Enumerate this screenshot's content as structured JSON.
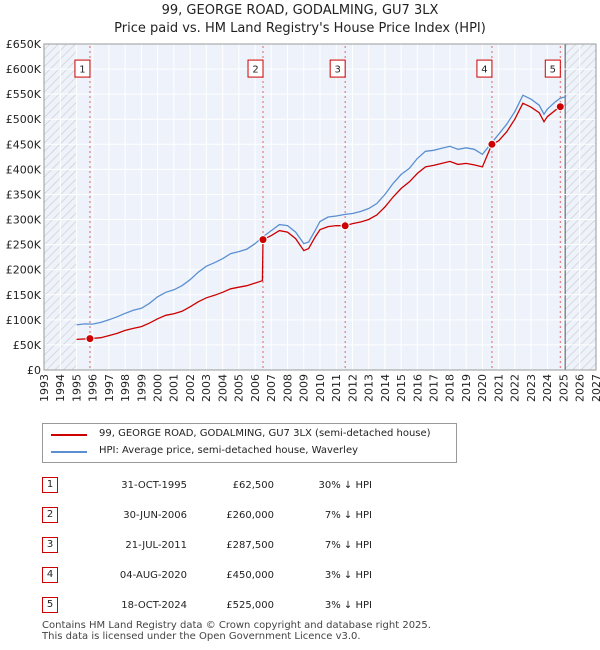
{
  "title_line1": "99, GEORGE ROAD, GODALMING, GU7 3LX",
  "title_line2": "Price paid vs. HM Land Registry's House Price Index (HPI)",
  "chart_data": {
    "type": "line",
    "xlim": [
      1993,
      2027
    ],
    "ylim": [
      0,
      650000
    ],
    "y_ticks": [
      0,
      50000,
      100000,
      150000,
      200000,
      250000,
      300000,
      350000,
      400000,
      450000,
      500000,
      550000,
      600000,
      650000
    ],
    "y_tick_labels": [
      "£0",
      "£50K",
      "£100K",
      "£150K",
      "£200K",
      "£250K",
      "£300K",
      "£350K",
      "£400K",
      "£450K",
      "£500K",
      "£550K",
      "£600K",
      "£650K"
    ],
    "x_ticks": [
      1993,
      1994,
      1995,
      1996,
      1997,
      1998,
      1999,
      2000,
      2001,
      2002,
      2003,
      2004,
      2005,
      2006,
      2007,
      2008,
      2009,
      2010,
      2011,
      2012,
      2013,
      2014,
      2015,
      2016,
      2017,
      2018,
      2019,
      2020,
      2021,
      2022,
      2023,
      2024,
      2025,
      2026,
      2027
    ],
    "data_start": 1995.0,
    "data_end": 2025.1,
    "hatch_before": 1995.0,
    "hatch_after": 2025.1,
    "hpi_points": [
      [
        1995.0,
        90000
      ],
      [
        1995.5,
        92000
      ],
      [
        1996,
        91500
      ],
      [
        1996.5,
        95000
      ],
      [
        1997,
        100000
      ],
      [
        1997.5,
        106000
      ],
      [
        1998,
        113000
      ],
      [
        1998.5,
        119000
      ],
      [
        1999,
        123000
      ],
      [
        1999.5,
        133000
      ],
      [
        2000,
        146000
      ],
      [
        2000.5,
        155000
      ],
      [
        2001,
        160000
      ],
      [
        2001.5,
        168000
      ],
      [
        2002,
        180000
      ],
      [
        2002.5,
        195000
      ],
      [
        2003,
        207000
      ],
      [
        2003.5,
        214000
      ],
      [
        2004,
        222000
      ],
      [
        2004.5,
        232000
      ],
      [
        2005,
        236000
      ],
      [
        2005.5,
        241000
      ],
      [
        2006,
        252000
      ],
      [
        2006.5,
        266000
      ],
      [
        2007,
        278000
      ],
      [
        2007.5,
        290000
      ],
      [
        2008,
        288000
      ],
      [
        2008.5,
        275000
      ],
      [
        2009,
        252000
      ],
      [
        2009.3,
        255000
      ],
      [
        2009.7,
        278000
      ],
      [
        2010,
        296000
      ],
      [
        2010.5,
        305000
      ],
      [
        2011,
        307000
      ],
      [
        2011.5,
        310000
      ],
      [
        2012,
        312000
      ],
      [
        2012.5,
        316000
      ],
      [
        2013,
        322000
      ],
      [
        2013.5,
        332000
      ],
      [
        2014,
        350000
      ],
      [
        2014.5,
        372000
      ],
      [
        2015,
        390000
      ],
      [
        2015.5,
        402000
      ],
      [
        2016,
        422000
      ],
      [
        2016.5,
        436000
      ],
      [
        2017,
        438000
      ],
      [
        2017.5,
        442000
      ],
      [
        2018,
        446000
      ],
      [
        2018.5,
        440000
      ],
      [
        2019,
        443000
      ],
      [
        2019.5,
        440000
      ],
      [
        2020,
        430000
      ],
      [
        2020.5,
        450000
      ],
      [
        2021,
        470000
      ],
      [
        2021.5,
        490000
      ],
      [
        2022,
        515000
      ],
      [
        2022.5,
        548000
      ],
      [
        2023,
        540000
      ],
      [
        2023.5,
        528000
      ],
      [
        2023.8,
        510000
      ],
      [
        2024,
        520000
      ],
      [
        2024.5,
        535000
      ],
      [
        2024.8,
        542000
      ],
      [
        2025.1,
        545000
      ]
    ],
    "price_paid_points": [
      [
        1995.0,
        61000
      ],
      [
        1995.83,
        62500
      ],
      [
        1996.5,
        64500
      ],
      [
        1997,
        68500
      ],
      [
        1997.5,
        73000
      ],
      [
        1998,
        79000
      ],
      [
        1998.5,
        83000
      ],
      [
        1999,
        86500
      ],
      [
        1999.5,
        93500
      ],
      [
        2000,
        102000
      ],
      [
        2000.5,
        109000
      ],
      [
        2001,
        112000
      ],
      [
        2001.5,
        117000
      ],
      [
        2002,
        126000
      ],
      [
        2002.5,
        136000
      ],
      [
        2003,
        144000
      ],
      [
        2003.5,
        149000
      ],
      [
        2004,
        155000
      ],
      [
        2004.5,
        162000
      ],
      [
        2005,
        165000
      ],
      [
        2005.5,
        168000
      ],
      [
        2006.45,
        178000
      ],
      [
        2006.49,
        260000
      ],
      [
        2007,
        268000
      ],
      [
        2007.5,
        278000
      ],
      [
        2008,
        275000
      ],
      [
        2008.5,
        262000
      ],
      [
        2009,
        238000
      ],
      [
        2009.3,
        242000
      ],
      [
        2009.7,
        265000
      ],
      [
        2010,
        280000
      ],
      [
        2010.5,
        286000
      ],
      [
        2011,
        288000
      ],
      [
        2011.55,
        287500
      ],
      [
        2012,
        292000
      ],
      [
        2012.5,
        295000
      ],
      [
        2013,
        300000
      ],
      [
        2013.5,
        309000
      ],
      [
        2014,
        325000
      ],
      [
        2014.5,
        345000
      ],
      [
        2015,
        362000
      ],
      [
        2015.5,
        375000
      ],
      [
        2016,
        392000
      ],
      [
        2016.5,
        405000
      ],
      [
        2017,
        408000
      ],
      [
        2017.5,
        412000
      ],
      [
        2018,
        416000
      ],
      [
        2018.5,
        410000
      ],
      [
        2019,
        412000
      ],
      [
        2019.5,
        409000
      ],
      [
        2020,
        405000
      ],
      [
        2020.59,
        450000
      ],
      [
        2021,
        457000
      ],
      [
        2021.5,
        475000
      ],
      [
        2022,
        500000
      ],
      [
        2022.5,
        532000
      ],
      [
        2023,
        524000
      ],
      [
        2023.5,
        513000
      ],
      [
        2023.8,
        495000
      ],
      [
        2024,
        505000
      ],
      [
        2024.5,
        518000
      ],
      [
        2024.8,
        525000
      ],
      [
        2025.1,
        527000
      ]
    ],
    "series": [
      {
        "name": "99, GEORGE ROAD, GODALMING, GU7 3LX (semi-detached house)",
        "color": "#cc0000"
      },
      {
        "name": "HPI: Average price, semi-detached house, Waverley",
        "color": "#5b8fd1"
      }
    ],
    "sales": [
      {
        "num": "1",
        "x": 1995.83,
        "y": 62500
      },
      {
        "num": "2",
        "x": 2006.49,
        "y": 260000
      },
      {
        "num": "3",
        "x": 2011.55,
        "y": 287500
      },
      {
        "num": "4",
        "x": 2020.59,
        "y": 450000
      },
      {
        "num": "5",
        "x": 2024.8,
        "y": 525000
      }
    ],
    "box_value": 600000
  },
  "legend": {
    "price_label": "99, GEORGE ROAD, GODALMING, GU7 3LX (semi-detached house)",
    "hpi_label": "HPI: Average price, semi-detached house, Waverley",
    "price_color": "#cc0000",
    "hpi_color": "#5b8fd1"
  },
  "table": [
    {
      "num": "1",
      "date": "31-OCT-1995",
      "price": "£62,500",
      "hpi": "30% ↓ HPI"
    },
    {
      "num": "2",
      "date": "30-JUN-2006",
      "price": "£260,000",
      "hpi": "7% ↓ HPI"
    },
    {
      "num": "3",
      "date": "21-JUL-2011",
      "price": "£287,500",
      "hpi": "7% ↓ HPI"
    },
    {
      "num": "4",
      "date": "04-AUG-2020",
      "price": "£450,000",
      "hpi": "3% ↓ HPI"
    },
    {
      "num": "5",
      "date": "18-OCT-2024",
      "price": "£525,000",
      "hpi": "3% ↓ HPI"
    }
  ],
  "footer_line1": "Contains HM Land Registry data © Crown copyright and database right 2025.",
  "footer_line2": "This data is licensed under the Open Government Licence v3.0."
}
